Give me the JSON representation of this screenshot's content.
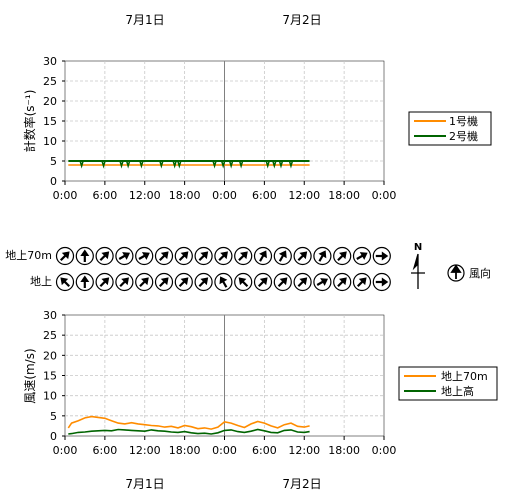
{
  "date_labels": [
    "7月1日",
    "7月2日"
  ],
  "time_ticks": [
    "0:00",
    "6:00",
    "12:00",
    "18:00",
    "0:00",
    "6:00",
    "12:00",
    "18:00",
    "0:00"
  ],
  "count_chart": {
    "ylabel": "計数率(s⁻¹)",
    "yticks": [
      "30",
      "25",
      "20",
      "15",
      "10",
      "5",
      "0"
    ],
    "legend": [
      "1号機",
      "2号機"
    ]
  },
  "wind_direction": {
    "row_labels": [
      "地上70m",
      "地上"
    ],
    "north_label": "N",
    "legend_label": "風向"
  },
  "wind_chart": {
    "ylabel": "風速(m/s)",
    "yticks": [
      "30",
      "25",
      "20",
      "15",
      "10",
      "5",
      "0"
    ],
    "legend": [
      "地上70m",
      "地上高"
    ]
  },
  "colors": {
    "series_orange": "#ff8c00",
    "series_green": "#006400",
    "grid": "#c8c8c8",
    "day_line": "#808080"
  },
  "chart_data": [
    {
      "type": "line",
      "x_unit": "hours since 7月1日 0:00",
      "xlim": [
        0,
        48
      ],
      "ylim": [
        0,
        30
      ],
      "ylabel": "計数率(s⁻¹)",
      "grid": true,
      "legend_position": "right",
      "series": [
        {
          "name": "1号機",
          "color": "#ff8c00",
          "x": [
            0.5,
            36.8
          ],
          "y": [
            4.0,
            4.0
          ]
        },
        {
          "name": "2号機",
          "color": "#006400",
          "x": [
            0.5,
            36.8
          ],
          "y": [
            5.0,
            5.0
          ],
          "dips_at_hours": [
            2.5,
            5.8,
            8.5,
            9.5,
            11.5,
            14.5,
            16.5,
            17.2,
            22.5,
            23.8,
            25,
            26.5,
            30.5,
            31.5,
            32.5,
            34.0
          ]
        }
      ]
    },
    {
      "type": "line",
      "x_unit": "hours since 7月1日 0:00",
      "xlim": [
        0,
        48
      ],
      "ylim": [
        0,
        30
      ],
      "ylabel": "風速(m/s)",
      "grid": true,
      "legend_position": "right",
      "series": [
        {
          "name": "地上70m",
          "color": "#ff8c00",
          "x": [
            0.5,
            1,
            2,
            3,
            4,
            5,
            6,
            7,
            8,
            9,
            10,
            11,
            12,
            13,
            14,
            15,
            16,
            17,
            18,
            19,
            20,
            21,
            22,
            23,
            24,
            25,
            26,
            27,
            28,
            29,
            30,
            31,
            32,
            33,
            34,
            35,
            36,
            36.8
          ],
          "y": [
            2.0,
            3.2,
            3.8,
            4.5,
            4.8,
            4.6,
            4.4,
            3.8,
            3.2,
            3.0,
            3.3,
            3.0,
            2.8,
            2.6,
            2.5,
            2.2,
            2.4,
            2.0,
            2.6,
            2.3,
            1.8,
            2.0,
            1.7,
            2.2,
            3.5,
            3.2,
            2.6,
            2.1,
            3.0,
            3.6,
            3.2,
            2.5,
            2.0,
            2.8,
            3.2,
            2.4,
            2.2,
            2.5
          ]
        },
        {
          "name": "地上高",
          "color": "#006400",
          "x": [
            0.5,
            1,
            2,
            3,
            4,
            5,
            6,
            7,
            8,
            9,
            10,
            11,
            12,
            13,
            14,
            15,
            16,
            17,
            18,
            19,
            20,
            21,
            22,
            23,
            24,
            25,
            26,
            27,
            28,
            29,
            30,
            31,
            32,
            33,
            34,
            35,
            36,
            36.8
          ],
          "y": [
            0.5,
            0.6,
            0.9,
            1.0,
            1.2,
            1.3,
            1.4,
            1.3,
            1.6,
            1.5,
            1.4,
            1.3,
            1.2,
            1.5,
            1.3,
            1.2,
            1.0,
            0.9,
            1.1,
            0.8,
            0.6,
            0.7,
            0.5,
            0.8,
            1.4,
            1.5,
            1.1,
            0.9,
            1.2,
            1.6,
            1.3,
            0.9,
            0.8,
            1.4,
            1.5,
            1.0,
            0.9,
            1.1
          ]
        }
      ]
    },
    {
      "type": "wind_direction",
      "rows": [
        "地上70m",
        "地上"
      ],
      "directions_deg": [
        [
          45,
          0,
          45,
          60,
          60,
          45,
          45,
          45,
          45,
          45,
          30,
          30,
          45,
          30,
          45,
          60,
          90
        ],
        [
          315,
          0,
          45,
          45,
          45,
          45,
          45,
          45,
          330,
          315,
          45,
          45,
          45,
          60,
          45,
          45,
          90
        ]
      ]
    }
  ]
}
